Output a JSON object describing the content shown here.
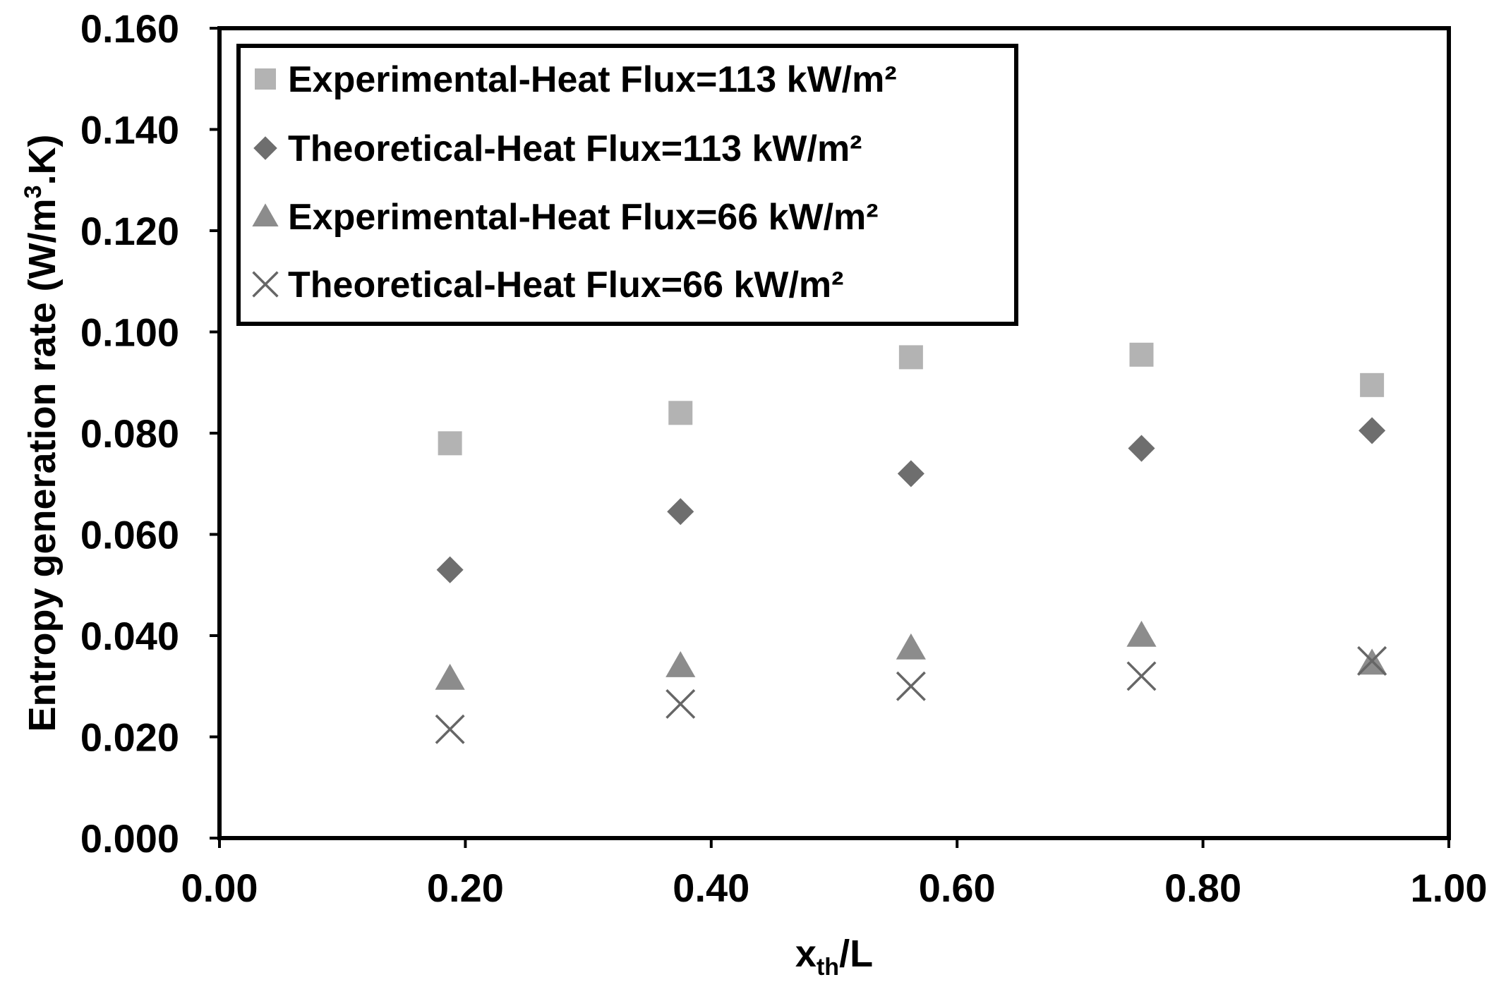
{
  "chart_data": {
    "type": "scatter",
    "xlabel": {
      "main": "x",
      "sub": "th",
      "tail": "/L"
    },
    "ylabel": {
      "pre": "Entropy generation rate (W/m",
      "sup": "3",
      "post": ".K)"
    },
    "xlim": [
      0.0,
      1.0
    ],
    "ylim": [
      0.0,
      0.16
    ],
    "xticks": [
      "0.00",
      "0.20",
      "0.40",
      "0.60",
      "0.80",
      "1.00"
    ],
    "yticks": [
      "0.000",
      "0.020",
      "0.040",
      "0.060",
      "0.080",
      "0.100",
      "0.120",
      "0.140",
      "0.160"
    ],
    "grid": false,
    "legend_position": "top-left",
    "series": [
      {
        "name": "Experimental-Heat Flux=113 kW/m²",
        "marker": "square",
        "color": "#b3b3b3",
        "x": [
          0.1875,
          0.375,
          0.5625,
          0.75,
          0.9375
        ],
        "y": [
          0.078,
          0.084,
          0.095,
          0.0955,
          0.0895
        ]
      },
      {
        "name": "Theoretical-Heat Flux=113 kW/m²",
        "marker": "diamond",
        "color": "#6e6e6e",
        "x": [
          0.1875,
          0.375,
          0.5625,
          0.75,
          0.9375
        ],
        "y": [
          0.053,
          0.0645,
          0.072,
          0.077,
          0.0805
        ]
      },
      {
        "name": "Experimental-Heat Flux=66 kW/m²",
        "marker": "triangle",
        "color": "#8c8c8c",
        "x": [
          0.1875,
          0.375,
          0.5625,
          0.75,
          0.9375
        ],
        "y": [
          0.0315,
          0.034,
          0.0375,
          0.04,
          0.0345
        ]
      },
      {
        "name": "Theoretical-Heat Flux=66 kW/m²",
        "marker": "x",
        "color": "#666666",
        "x": [
          0.1875,
          0.375,
          0.5625,
          0.75,
          0.9375
        ],
        "y": [
          0.0215,
          0.0265,
          0.03,
          0.032,
          0.035
        ]
      }
    ]
  }
}
